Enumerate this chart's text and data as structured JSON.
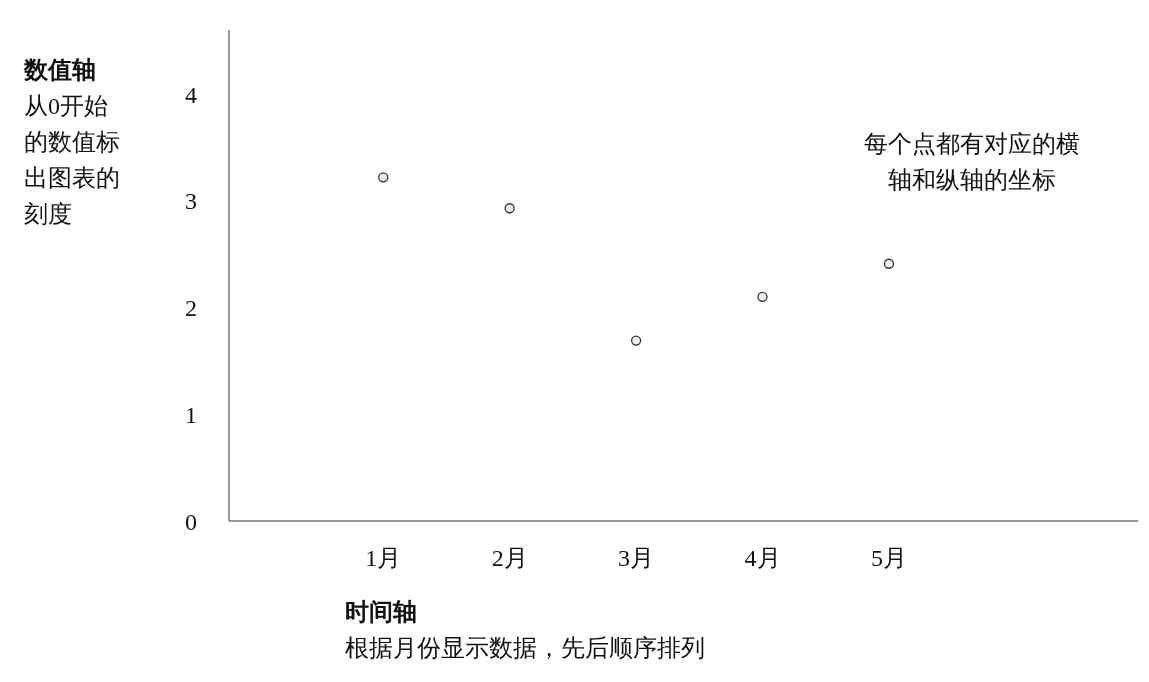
{
  "chart_data": {
    "type": "scatter",
    "ylabel": "数值轴",
    "xlabel": "时间轴",
    "annotations": [
      "从0开始的数值标出图表的刻度",
      "根据月份显示数据，先后顺序排列",
      "每个点都有对应的横轴和纵轴的坐标"
    ],
    "categories": [
      "1月",
      "2月",
      "3月",
      "4月",
      "5月"
    ],
    "values": [
      3.22,
      2.93,
      1.69,
      2.1,
      2.41
    ],
    "color": "#e8eef8",
    "marker": "circle",
    "ylim": [
      0,
      4.6
    ],
    "yticks": [
      0,
      1,
      2,
      3,
      4
    ],
    "grid": false
  }
}
